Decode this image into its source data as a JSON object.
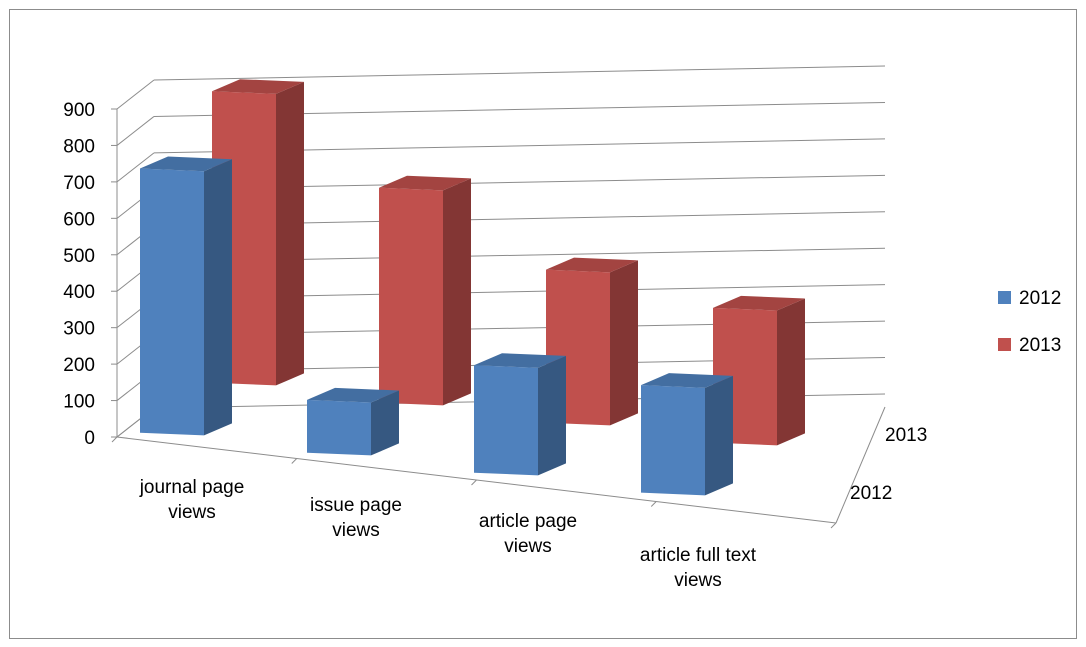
{
  "chart_data": {
    "type": "bar",
    "subtype": "3d-column",
    "categories": [
      "journal page views",
      "issue page views",
      "article page views",
      "article full text views"
    ],
    "category_lines": [
      [
        "journal page",
        "views"
      ],
      [
        "issue page",
        "views"
      ],
      [
        "article page",
        "views"
      ],
      [
        "article full text",
        "views"
      ]
    ],
    "series": [
      {
        "name": "2012",
        "values": [
          725,
          145,
          295,
          295
        ],
        "color": "#4f81bd"
      },
      {
        "name": "2013",
        "values": [
          800,
          590,
          420,
          370
        ],
        "color": "#c0504d"
      }
    ],
    "depth_labels": [
      "2012",
      "2013"
    ],
    "y_ticks": [
      "0",
      "100",
      "200",
      "300",
      "400",
      "500",
      "600",
      "700",
      "800",
      "900"
    ],
    "ylim": [
      0,
      900
    ],
    "grid": true,
    "legend": {
      "position": "right",
      "items": [
        "2012",
        "2013"
      ]
    }
  }
}
